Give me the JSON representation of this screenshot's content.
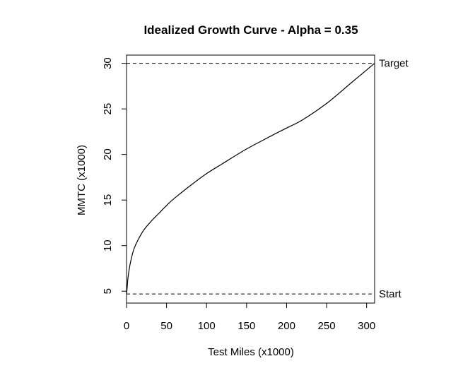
{
  "chart_data": {
    "type": "line",
    "title": "Idealized Growth Curve - Alpha = 0.35",
    "xlabel": "Test Miles (x1000)",
    "ylabel": "MMTC (x1000)",
    "xlim": [
      0,
      310
    ],
    "ylim": [
      3.7,
      30.9
    ],
    "x_ticks": [
      0,
      50,
      100,
      150,
      200,
      250,
      300
    ],
    "y_ticks": [
      5,
      10,
      15,
      20,
      25,
      30
    ],
    "grid": false,
    "series": [
      {
        "x": [
          0.1,
          1,
          2,
          5,
          10,
          20,
          30,
          40,
          50,
          60,
          80,
          100,
          120,
          150,
          180,
          200,
          220,
          250,
          280,
          310
        ],
        "y": [
          4.7,
          5.6,
          6.6,
          8.2,
          9.8,
          11.5,
          12.6,
          13.5,
          14.4,
          15.2,
          16.6,
          17.9,
          19.0,
          20.6,
          22.0,
          22.9,
          23.8,
          25.6,
          27.8,
          30.0
        ],
        "color": "#000000"
      }
    ],
    "reference_lines": [
      {
        "y": 30,
        "label": "Target",
        "style": "dashed"
      },
      {
        "y": 4.7,
        "label": "Start",
        "style": "dashed"
      }
    ]
  }
}
